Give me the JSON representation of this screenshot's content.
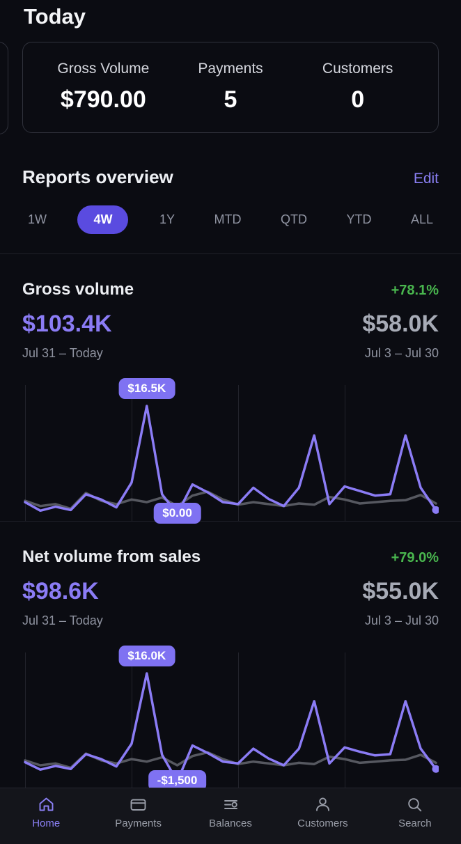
{
  "header": {
    "title": "Today"
  },
  "summary_card": {
    "stats": [
      {
        "label": "Gross Volume",
        "value": "$790.00"
      },
      {
        "label": "Payments",
        "value": "5"
      },
      {
        "label": "Customers",
        "value": "0"
      }
    ]
  },
  "reports": {
    "title": "Reports overview",
    "edit_label": "Edit",
    "range_tabs": [
      "1W",
      "4W",
      "1Y",
      "MTD",
      "QTD",
      "YTD",
      "ALL"
    ],
    "selected_tab": "4W"
  },
  "charts": [
    {
      "title": "Gross volume",
      "change": "+78.1%",
      "current_value": "$103.4K",
      "previous_value": "$58.0K",
      "current_period": "Jul 31 – Today",
      "previous_period": "Jul 3 – Jul 30",
      "chart_data": {
        "type": "line",
        "x_unit": "day",
        "n_points": 28,
        "ylim": [
          0,
          16.5
        ],
        "week_gridlines": [
          0,
          0.2593,
          0.5185,
          0.7778
        ],
        "grid_color": "#22232b",
        "series": [
          {
            "name": "Jul 3 – Jul 30",
            "color": "#565860",
            "values": [
              2.0,
              1.2,
              1.5,
              0.8,
              3.2,
              2.0,
              1.5,
              2.2,
              1.8,
              2.5,
              1.2,
              2.8,
              3.4,
              2.2,
              1.4,
              1.8,
              1.5,
              1.2,
              1.6,
              1.4,
              2.6,
              2.2,
              1.6,
              1.8,
              2.0,
              2.1,
              2.9,
              1.6
            ]
          },
          {
            "name": "Jul 31 – Today",
            "color": "#8b7cf5",
            "end_dot": true,
            "values": [
              1.8,
              0.5,
              1.1,
              0.6,
              3.0,
              2.2,
              1.0,
              4.8,
              16.5,
              3.0,
              0.0,
              4.5,
              3.3,
              1.8,
              1.5,
              4.0,
              2.3,
              1.2,
              4.0,
              12.0,
              1.5,
              4.2,
              3.5,
              2.8,
              3.0,
              12.0,
              4.0,
              0.6
            ]
          }
        ],
        "tooltips": [
          {
            "label": "$16.5K",
            "index": 8,
            "placement": "top"
          },
          {
            "label": "$0.00",
            "index": 10,
            "placement": "bottom"
          }
        ]
      }
    },
    {
      "title": "Net volume from sales",
      "change": "+79.0%",
      "current_value": "$98.6K",
      "previous_value": "$55.0K",
      "current_period": "Jul 31 – Today",
      "previous_period": "Jul 3 – Jul 30",
      "chart_data": {
        "type": "line",
        "x_unit": "day",
        "n_points": 28,
        "ylim": [
          -1.5,
          16.0
        ],
        "week_gridlines": [
          0,
          0.2593,
          0.5185,
          0.7778
        ],
        "grid_color": "#22232b",
        "series": [
          {
            "name": "Jul 3 – Jul 30",
            "color": "#565860",
            "values": [
              1.9,
              1.1,
              1.4,
              0.7,
              3.0,
              1.9,
              1.4,
              2.1,
              1.7,
              2.4,
              1.1,
              2.6,
              3.2,
              2.1,
              1.3,
              1.7,
              1.4,
              1.1,
              1.5,
              1.3,
              2.5,
              2.1,
              1.5,
              1.7,
              1.9,
              2.0,
              2.8,
              1.5
            ]
          },
          {
            "name": "Jul 31 – Today",
            "color": "#8b7cf5",
            "end_dot": true,
            "values": [
              1.6,
              0.4,
              1.0,
              0.5,
              2.9,
              2.1,
              0.9,
              4.6,
              16.0,
              2.8,
              -1.5,
              4.3,
              3.1,
              1.7,
              1.4,
              3.8,
              2.2,
              1.1,
              3.8,
              11.5,
              1.4,
              4.0,
              3.3,
              2.7,
              2.9,
              11.5,
              3.8,
              0.5
            ]
          }
        ],
        "tooltips": [
          {
            "label": "$16.0K",
            "index": 8,
            "placement": "top"
          },
          {
            "label": "-$1,500",
            "index": 10,
            "placement": "bottom"
          }
        ]
      }
    }
  ],
  "tabbar": {
    "items": [
      {
        "label": "Home",
        "icon": "home-icon",
        "active": true
      },
      {
        "label": "Payments",
        "icon": "payments-icon",
        "active": false
      },
      {
        "label": "Balances",
        "icon": "balances-icon",
        "active": false
      },
      {
        "label": "Customers",
        "icon": "customers-icon",
        "active": false
      },
      {
        "label": "Search",
        "icon": "search-icon",
        "active": false
      }
    ]
  },
  "colors": {
    "accent_pill": "#5a4be0",
    "accent_light": "#8b7cf5",
    "positive": "#49b64e",
    "tooltip_bg": "#7f72f2",
    "previous_line": "#565860"
  }
}
